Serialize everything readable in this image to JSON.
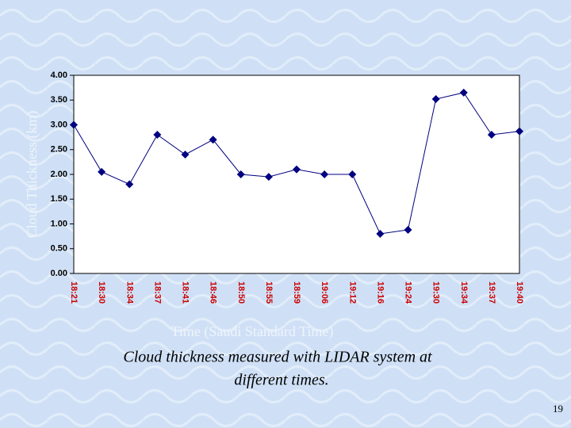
{
  "chart_data": {
    "type": "line",
    "y_label": "Cloud Thickness (km)",
    "x_label": "Time (Saudi Standard Time)",
    "categories": [
      "18:21",
      "18:30",
      "18:34",
      "18:37",
      "18:41",
      "18:46",
      "18:50",
      "18:55",
      "18:59",
      "19:06",
      "19:12",
      "19:16",
      "19:24",
      "19:30",
      "19:34",
      "19:37",
      "19:40"
    ],
    "series": [
      {
        "color": "#000080",
        "values": [
          3.0,
          2.05,
          1.8,
          2.8,
          2.4,
          2.7,
          2.0,
          1.95,
          2.1,
          2.0,
          2.0,
          0.8,
          0.88,
          3.52,
          3.65,
          2.8,
          2.87
        ]
      }
    ],
    "ylim": [
      0,
      4
    ],
    "yticks": [
      {
        "value": 0,
        "label": "0.00"
      },
      {
        "value": 0.5,
        "label": "0.50"
      },
      {
        "value": 1,
        "label": "1.00"
      },
      {
        "value": 1.5,
        "label": "1.50"
      },
      {
        "value": 2,
        "label": "2.00"
      },
      {
        "value": 2.5,
        "label": "2.50"
      },
      {
        "value": 3,
        "label": "3.00"
      },
      {
        "value": 3.5,
        "label": "3.50"
      },
      {
        "value": 4,
        "label": "4.00"
      }
    ],
    "grid": false
  },
  "caption": [
    "Cloud thickness measured with LIDAR system at",
    "different times."
  ],
  "page_number": "19"
}
